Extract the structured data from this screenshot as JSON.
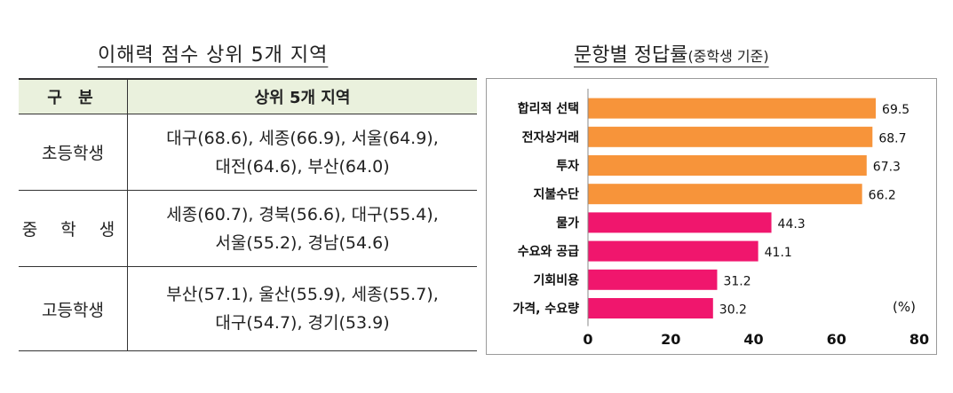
{
  "left": {
    "title": "이해력 점수 상위 5개 지역",
    "headers": [
      "구 분",
      "상위 5개 지역"
    ],
    "rows": [
      {
        "group": "초등학생",
        "line1": "대구(68.6), 세종(66.9), 서울(64.9),",
        "line2": "대전(64.6), 부산(64.0)"
      },
      {
        "group": "중 학 생",
        "line1": "세종(60.7), 경북(56.6), 대구(55.4),",
        "line2": "서울(55.2), 경남(54.6)"
      },
      {
        "group": "고등학생",
        "line1": "부산(57.1), 울산(55.9), 세종(55.7),",
        "line2": "대구(54.7), 경기(53.9)"
      }
    ]
  },
  "right": {
    "title": "문항별 정답률",
    "title_suffix": "(중학생 기준)"
  },
  "chart_data": {
    "type": "bar",
    "orientation": "horizontal",
    "categories": [
      "합리적 선택",
      "전자상거래",
      "투자",
      "지불수단",
      "물가",
      "수요와 공급",
      "기회비용",
      "가격, 수요량"
    ],
    "values": [
      69.5,
      68.7,
      67.3,
      66.2,
      44.3,
      41.1,
      31.2,
      30.2
    ],
    "colors": [
      "#f7943a",
      "#f7943a",
      "#f7943a",
      "#f7943a",
      "#f0166d",
      "#f0166d",
      "#f0166d",
      "#f0166d"
    ],
    "xlim": [
      0,
      80
    ],
    "xticks": [
      0,
      20,
      40,
      60,
      80
    ],
    "unit": "(%)",
    "grid": false
  }
}
